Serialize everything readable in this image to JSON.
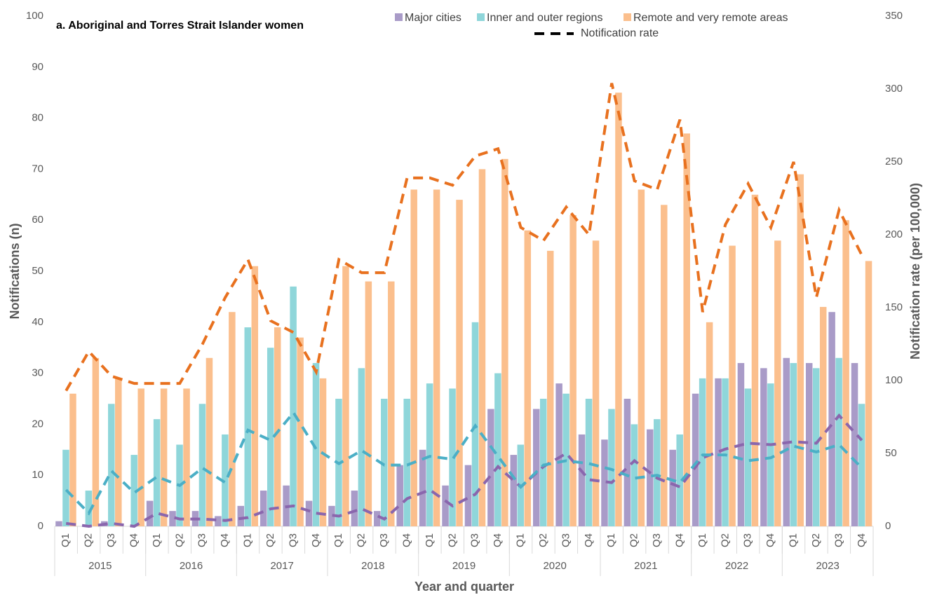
{
  "chart_data": {
    "type": "bar",
    "title": "a. Aboriginal and Torres Strait Islander women",
    "x_label": "Year and quarter",
    "y_label": "Notifications (n)",
    "y2_label": "Notification rate (per 100,000)",
    "line_legend": "Notification rate",
    "line_legend_color": "#000000",
    "categories": [
      "Q1",
      "Q2",
      "Q3",
      "Q4",
      "Q1",
      "Q2",
      "Q3",
      "Q4",
      "Q1",
      "Q2",
      "Q3",
      "Q4",
      "Q1",
      "Q2",
      "Q3",
      "Q4",
      "Q1",
      "Q2",
      "Q3",
      "Q4",
      "Q1",
      "Q2",
      "Q3",
      "Q4",
      "Q1",
      "Q2",
      "Q3",
      "Q4",
      "Q1",
      "Q2",
      "Q3",
      "Q4",
      "Q1",
      "Q2",
      "Q3",
      "Q4"
    ],
    "groups": [
      "2015",
      "2016",
      "2017",
      "2018",
      "2019",
      "2020",
      "2021",
      "2022",
      "2023"
    ],
    "ylim": [
      0,
      100
    ],
    "yticks": [
      0,
      10,
      20,
      30,
      40,
      50,
      60,
      70,
      80,
      90,
      100
    ],
    "y2lim": [
      0,
      350
    ],
    "y2ticks": [
      0,
      50,
      100,
      150,
      200,
      250,
      300,
      350
    ],
    "grid": false,
    "legend": "top",
    "series": [
      {
        "name": "Major cities",
        "color": "#a99bc8",
        "values": [
          1,
          0,
          1,
          0,
          5,
          3,
          3,
          2,
          4,
          7,
          8,
          5,
          4,
          7,
          3,
          12,
          15,
          8,
          12,
          23,
          14,
          23,
          28,
          18,
          17,
          25,
          19,
          15,
          26,
          29,
          32,
          31,
          33,
          32,
          42,
          32
        ]
      },
      {
        "name": "Inner and outer regions",
        "color": "#8fd6da",
        "values": [
          15,
          7,
          24,
          14,
          21,
          16,
          24,
          18,
          39,
          35,
          47,
          32,
          25,
          31,
          25,
          25,
          28,
          27,
          40,
          30,
          16,
          25,
          26,
          25,
          23,
          20,
          21,
          18,
          29,
          29,
          27,
          28,
          32,
          31,
          33,
          24
        ]
      },
      {
        "name": "Remote and very remote areas",
        "color": "#fbbf8d",
        "values": [
          26,
          33,
          29,
          27,
          27,
          27,
          33,
          42,
          51,
          39,
          37,
          29,
          51,
          48,
          48,
          66,
          66,
          64,
          70,
          72,
          58,
          54,
          61,
          56,
          85,
          66,
          63,
          77,
          40,
          55,
          65,
          56,
          69,
          43,
          60,
          52
        ]
      },
      {
        "type": "line",
        "axis": "y2",
        "color": "#8a66ad",
        "values": [
          2,
          0,
          2,
          0,
          9,
          5,
          5,
          4,
          6,
          12,
          14,
          9,
          7,
          12,
          5,
          19,
          25,
          14,
          22,
          41,
          27,
          41,
          50,
          32,
          30,
          45,
          33,
          27,
          47,
          53,
          57,
          56,
          58,
          57,
          76,
          59
        ]
      },
      {
        "type": "line",
        "axis": "y2",
        "color": "#4bafc6",
        "values": [
          25,
          9,
          38,
          23,
          34,
          28,
          40,
          30,
          66,
          59,
          78,
          53,
          43,
          52,
          42,
          42,
          48,
          46,
          69,
          48,
          27,
          42,
          45,
          43,
          39,
          33,
          35,
          30,
          49,
          49,
          45,
          47,
          55,
          51,
          56,
          40
        ]
      },
      {
        "type": "line",
        "axis": "y2",
        "color": "#e8711f",
        "values": [
          93,
          120,
          103,
          98,
          98,
          98,
          125,
          157,
          183,
          141,
          133,
          106,
          183,
          174,
          174,
          239,
          239,
          234,
          254,
          259,
          205,
          196,
          219,
          200,
          304,
          237,
          231,
          279,
          147,
          207,
          235,
          205,
          250,
          157,
          217,
          186
        ]
      }
    ]
  }
}
